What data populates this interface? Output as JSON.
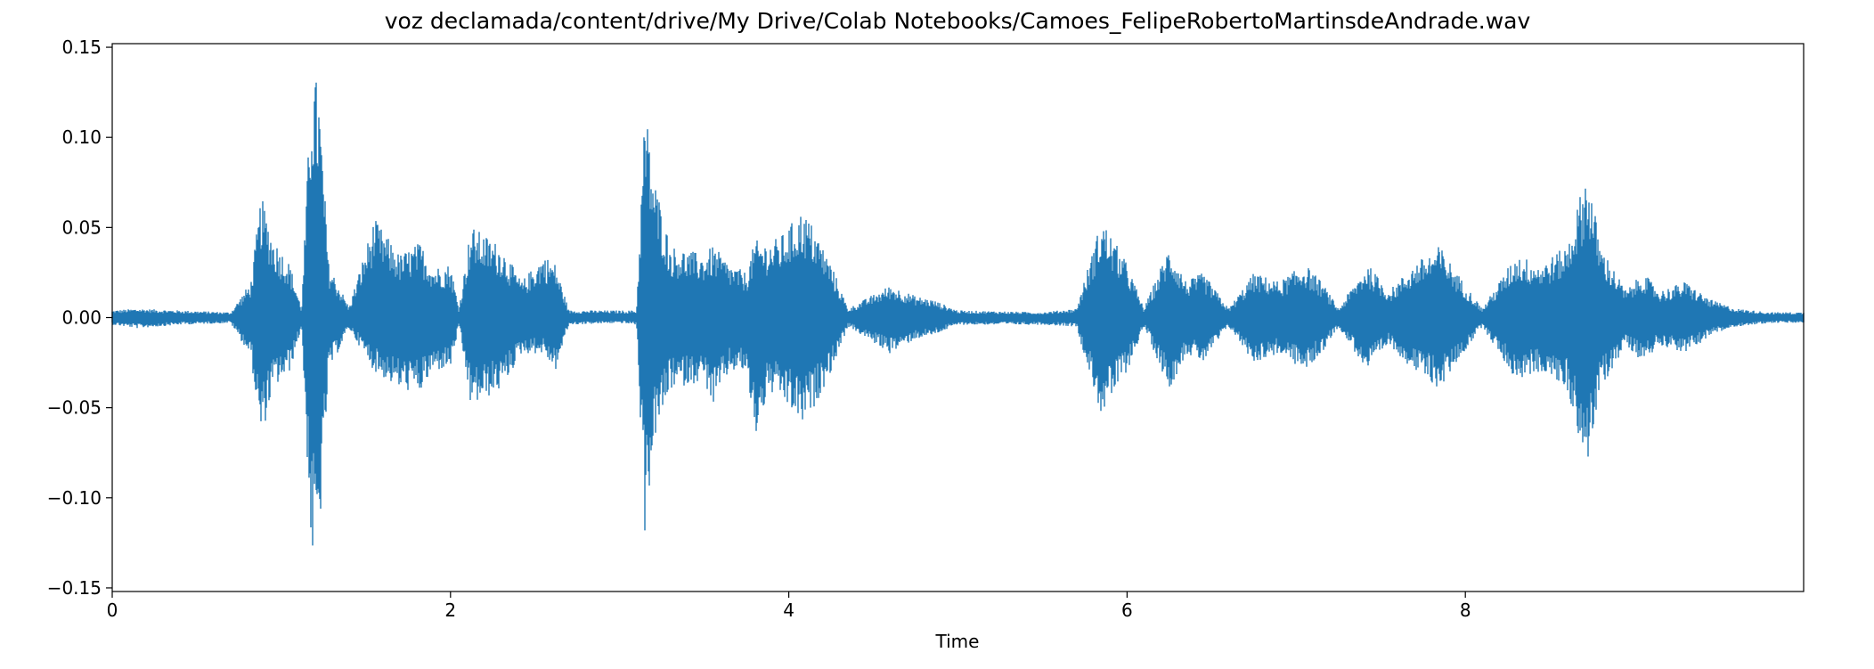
{
  "chart_data": {
    "type": "line",
    "title": "voz declamada/content/drive/My Drive/Colab Notebooks/Camoes_FelipeRobertoMartinsdeAndrade.wav",
    "xlabel": "Time",
    "ylabel": "",
    "xlim": [
      0,
      10.0
    ],
    "ylim": [
      -0.152,
      0.152
    ],
    "xticks": [
      0,
      2,
      4,
      6,
      8
    ],
    "xtick_labels": [
      "0",
      "2",
      "4",
      "6",
      "8"
    ],
    "yticks": [
      0.15,
      0.1,
      0.05,
      0.0,
      -0.05,
      -0.1,
      -0.15
    ],
    "ytick_labels": [
      "0.15",
      "0.10",
      "0.05",
      "0.00",
      "−0.05",
      "−0.10",
      "−0.15"
    ],
    "grid": false,
    "legend": "none",
    "series_color": "#1f77b4",
    "series": [
      {
        "envelope_points": [
          [
            0.0,
            0.004,
            -0.004
          ],
          [
            0.15,
            0.005,
            -0.006
          ],
          [
            0.4,
            0.004,
            -0.004
          ],
          [
            0.7,
            0.003,
            -0.003
          ],
          [
            0.82,
            0.02,
            -0.022
          ],
          [
            0.88,
            0.068,
            -0.068
          ],
          [
            0.95,
            0.045,
            -0.04
          ],
          [
            1.05,
            0.03,
            -0.03
          ],
          [
            1.12,
            0.005,
            -0.005
          ],
          [
            1.18,
            0.138,
            -0.138
          ],
          [
            1.22,
            0.13,
            -0.13
          ],
          [
            1.28,
            0.03,
            -0.03
          ],
          [
            1.4,
            0.006,
            -0.006
          ],
          [
            1.55,
            0.055,
            -0.03
          ],
          [
            1.7,
            0.035,
            -0.04
          ],
          [
            1.82,
            0.042,
            -0.042
          ],
          [
            1.9,
            0.028,
            -0.03
          ],
          [
            2.0,
            0.03,
            -0.028
          ],
          [
            2.05,
            0.005,
            -0.005
          ],
          [
            2.12,
            0.051,
            -0.05
          ],
          [
            2.3,
            0.04,
            -0.04
          ],
          [
            2.42,
            0.02,
            -0.02
          ],
          [
            2.55,
            0.035,
            -0.02
          ],
          [
            2.62,
            0.03,
            -0.03
          ],
          [
            2.7,
            0.004,
            -0.004
          ],
          [
            3.0,
            0.004,
            -0.003
          ],
          [
            3.1,
            0.004,
            -0.004
          ],
          [
            3.15,
            0.12,
            -0.122
          ],
          [
            3.2,
            0.08,
            -0.07
          ],
          [
            3.3,
            0.04,
            -0.04
          ],
          [
            3.5,
            0.035,
            -0.035
          ],
          [
            3.55,
            0.04,
            -0.05
          ],
          [
            3.65,
            0.03,
            -0.03
          ],
          [
            3.75,
            0.025,
            -0.03
          ],
          [
            3.8,
            0.043,
            -0.068
          ],
          [
            3.88,
            0.042,
            -0.042
          ],
          [
            3.95,
            0.045,
            -0.045
          ],
          [
            4.08,
            0.06,
            -0.06
          ],
          [
            4.15,
            0.05,
            -0.05
          ],
          [
            4.25,
            0.03,
            -0.03
          ],
          [
            4.35,
            0.005,
            -0.005
          ],
          [
            4.6,
            0.018,
            -0.02
          ],
          [
            4.75,
            0.012,
            -0.012
          ],
          [
            4.85,
            0.01,
            -0.01
          ],
          [
            5.0,
            0.004,
            -0.004
          ],
          [
            5.5,
            0.003,
            -0.004
          ],
          [
            5.7,
            0.005,
            -0.005
          ],
          [
            5.85,
            0.055,
            -0.055
          ],
          [
            6.0,
            0.03,
            -0.03
          ],
          [
            6.1,
            0.005,
            -0.005
          ],
          [
            6.25,
            0.04,
            -0.04
          ],
          [
            6.35,
            0.02,
            -0.02
          ],
          [
            6.45,
            0.025,
            -0.025
          ],
          [
            6.6,
            0.005,
            -0.005
          ],
          [
            6.75,
            0.025,
            -0.025
          ],
          [
            6.9,
            0.02,
            -0.02
          ],
          [
            7.05,
            0.03,
            -0.03
          ],
          [
            7.15,
            0.02,
            -0.02
          ],
          [
            7.25,
            0.005,
            -0.005
          ],
          [
            7.42,
            0.03,
            -0.03
          ],
          [
            7.55,
            0.015,
            -0.015
          ],
          [
            7.7,
            0.03,
            -0.03
          ],
          [
            7.85,
            0.04,
            -0.04
          ],
          [
            7.95,
            0.025,
            -0.025
          ],
          [
            8.1,
            0.005,
            -0.005
          ],
          [
            8.3,
            0.035,
            -0.035
          ],
          [
            8.45,
            0.03,
            -0.03
          ],
          [
            8.6,
            0.04,
            -0.04
          ],
          [
            8.72,
            0.083,
            -0.083
          ],
          [
            8.8,
            0.04,
            -0.04
          ],
          [
            8.95,
            0.015,
            -0.015
          ],
          [
            9.05,
            0.025,
            -0.025
          ],
          [
            9.15,
            0.015,
            -0.015
          ],
          [
            9.3,
            0.02,
            -0.02
          ],
          [
            9.45,
            0.01,
            -0.01
          ],
          [
            9.6,
            0.005,
            -0.005
          ],
          [
            9.8,
            0.003,
            -0.003
          ],
          [
            10.0,
            0.003,
            -0.003
          ]
        ]
      }
    ]
  }
}
